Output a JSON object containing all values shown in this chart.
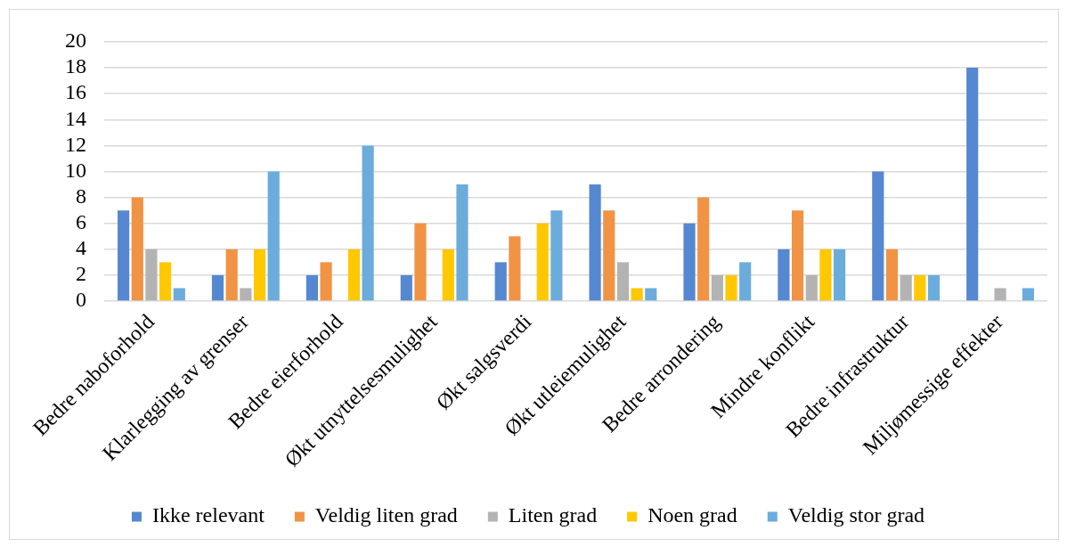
{
  "chart_data": {
    "type": "bar",
    "categories": [
      "Bedre naboforhold",
      "Klarlegging av grenser",
      "Bedre eierforhold",
      "Økt utnyttelsesmulighet",
      "Økt salgsverdi",
      "Økt utleiemulighet",
      "Bedre arrondering",
      "Mindre konflikt",
      "Bedre infrastruktur",
      "Miljømessige effekter"
    ],
    "series": [
      {
        "name": "Ikke relevant",
        "color": "#5588d0",
        "values": [
          7,
          2,
          2,
          2,
          3,
          9,
          6,
          4,
          10,
          18
        ]
      },
      {
        "name": "Veldig liten grad",
        "color": "#f19344",
        "values": [
          8,
          4,
          3,
          6,
          5,
          7,
          8,
          7,
          4,
          0
        ]
      },
      {
        "name": "Liten grad",
        "color": "#b3b3b3",
        "values": [
          4,
          1,
          0,
          0,
          0,
          3,
          2,
          2,
          2,
          1
        ]
      },
      {
        "name": "Noen grad",
        "color": "#ffc800",
        "values": [
          3,
          4,
          4,
          4,
          6,
          1,
          2,
          4,
          2,
          0
        ]
      },
      {
        "name": "Veldig stor grad",
        "color": "#6cacdc",
        "values": [
          1,
          10,
          12,
          9,
          7,
          1,
          3,
          4,
          2,
          1
        ]
      }
    ],
    "ylim": [
      0,
      20
    ],
    "yticks": [
      0,
      2,
      4,
      6,
      8,
      10,
      12,
      14,
      16,
      18,
      20
    ],
    "grid": "y",
    "legend": "bottom"
  }
}
